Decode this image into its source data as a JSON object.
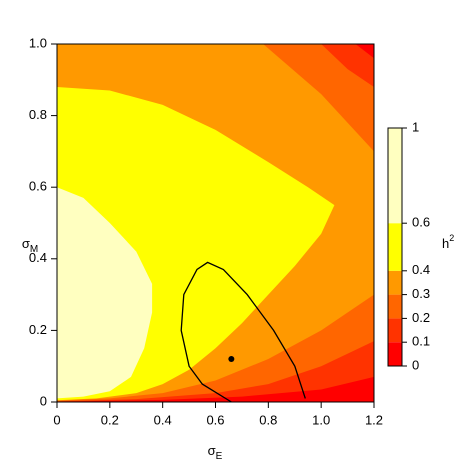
{
  "chart_data": {
    "type": "contour",
    "xlabel": {
      "symbol": "σ",
      "subscript": "E"
    },
    "ylabel": {
      "symbol": "σ",
      "subscript": "M"
    },
    "colorbar_title": {
      "symbol": "h",
      "superscript": "2"
    },
    "xlim": [
      0,
      1.2
    ],
    "ylim": [
      0,
      1
    ],
    "xticks": [
      0,
      0.2,
      0.4,
      0.6,
      0.8,
      {
        "value": 1,
        "label": "1.0"
      },
      1.2
    ],
    "yticks": [
      0,
      0.2,
      0.4,
      0.6,
      0.8,
      {
        "value": 1,
        "label": "1.0"
      }
    ],
    "levels": [
      0,
      0.1,
      0.2,
      0.3,
      0.4,
      0.6,
      1
    ],
    "colors": [
      "#ff0000",
      "#ff3300",
      "#ff6600",
      "#ff9900",
      "#ffff00",
      "#ffffc0"
    ],
    "regions": [
      {
        "level": 0.1,
        "x": [
          0,
          1.13,
          1.2,
          1.2,
          1.0,
          0.7,
          0.4,
          0
        ],
        "y": [
          1,
          1,
          0.96,
          0.07,
          0.035,
          0.015,
          0.006,
          0.001
        ]
      },
      {
        "level": 0.2,
        "x": [
          0,
          1.0,
          1.1,
          1.2,
          1.2,
          1.0,
          0.8,
          0.6,
          0.3,
          0
        ],
        "y": [
          1,
          1,
          0.93,
          0.88,
          0.17,
          0.1,
          0.05,
          0.025,
          0.008,
          0.002
        ]
      },
      {
        "level": 0.3,
        "x": [
          0,
          0.78,
          1.0,
          1.2,
          1.2,
          1.0,
          0.8,
          0.6,
          0.4,
          0.2,
          0
        ],
        "y": [
          1,
          1,
          0.86,
          0.7,
          0.3,
          0.2,
          0.12,
          0.06,
          0.025,
          0.01,
          0.004
        ]
      },
      {
        "level": 0.4,
        "x": [
          0,
          0.2,
          0.4,
          0.6,
          0.8,
          0.95,
          1.05,
          1.0,
          0.9,
          0.8,
          0.7,
          0.6,
          0.5,
          0.4,
          0.3,
          0.15,
          0
        ],
        "y": [
          0.88,
          0.87,
          0.83,
          0.76,
          0.67,
          0.6,
          0.55,
          0.47,
          0.38,
          0.3,
          0.22,
          0.15,
          0.09,
          0.05,
          0.025,
          0.01,
          0.005
        ]
      },
      {
        "level": 0.6,
        "x": [
          0,
          0.1,
          0.2,
          0.3,
          0.36,
          0.36,
          0.33,
          0.28,
          0.2,
          0.1,
          0
        ],
        "y": [
          0.6,
          0.57,
          0.5,
          0.42,
          0.33,
          0.25,
          0.15,
          0.07,
          0.03,
          0.015,
          0.01
        ]
      }
    ],
    "lines": [
      {
        "x": [
          0.66,
          0.55,
          0.5,
          0.47,
          0.48,
          0.53,
          0.57,
          0.63,
          0.72,
          0.82,
          0.9,
          0.94
        ],
        "y": [
          0,
          0.05,
          0.1,
          0.2,
          0.3,
          0.37,
          0.39,
          0.37,
          0.3,
          0.2,
          0.1,
          0.01
        ]
      }
    ],
    "points": [
      {
        "x": 0.66,
        "y": 0.12
      }
    ]
  }
}
